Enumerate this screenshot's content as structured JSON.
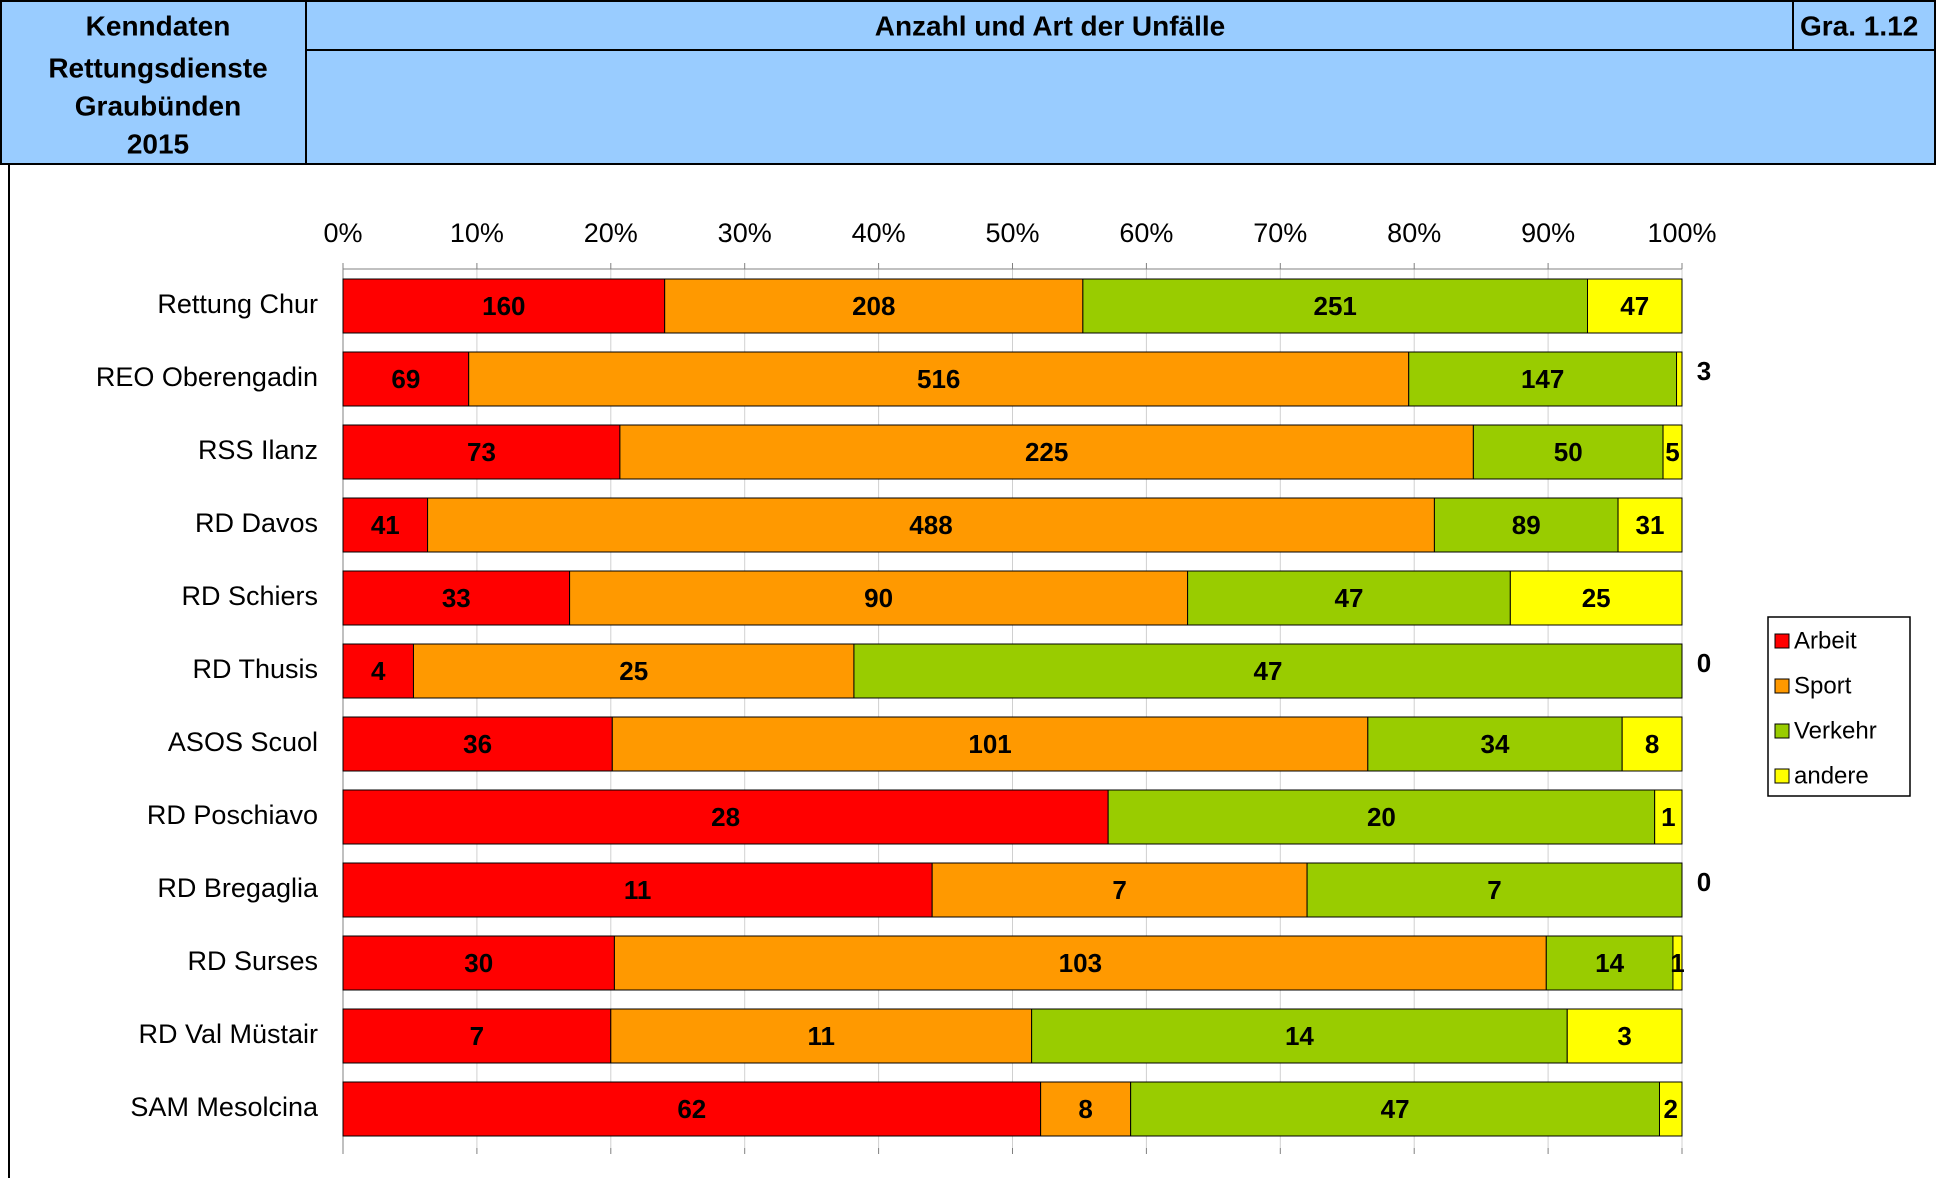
{
  "header": {
    "lines": [
      "Kenndaten",
      "Rettungsdienste",
      "Graubünden",
      "2015"
    ],
    "title": "Anzahl und Art der Unfälle",
    "code": "Gra. 1.12"
  },
  "chart_data": {
    "type": "bar",
    "orientation": "horizontal",
    "stacking": "percent",
    "categories": [
      "Rettung Chur",
      "REO Oberengadin",
      "RSS Ilanz",
      "RD Davos",
      "RD Schiers",
      "RD Thusis",
      "ASOS Scuol",
      "RD Poschiavo",
      "RD Bregaglia",
      "RD Surses",
      "RD Val Müstair",
      "SAM Mesolcina"
    ],
    "series": [
      {
        "name": "Arbeit",
        "color": "#ff0000",
        "values": [
          160,
          69,
          73,
          41,
          33,
          4,
          36,
          28,
          11,
          30,
          7,
          62
        ]
      },
      {
        "name": "Sport",
        "color": "#ff9900",
        "values": [
          208,
          516,
          225,
          488,
          90,
          25,
          101,
          0,
          7,
          103,
          11,
          8
        ]
      },
      {
        "name": "Verkehr",
        "color": "#99cc00",
        "values": [
          251,
          147,
          50,
          89,
          47,
          47,
          34,
          20,
          7,
          14,
          14,
          47
        ]
      },
      {
        "name": "andere",
        "color": "#ffff00",
        "values": [
          47,
          3,
          5,
          31,
          25,
          0,
          8,
          1,
          0,
          1,
          3,
          2
        ]
      }
    ],
    "xlim": [
      0,
      100
    ],
    "xticks": [
      {
        "value": 0,
        "label": "0%"
      },
      {
        "value": 10,
        "label": "10%"
      },
      {
        "value": 20,
        "label": "20%"
      },
      {
        "value": 30,
        "label": "30%"
      },
      {
        "value": 40,
        "label": "40%"
      },
      {
        "value": 50,
        "label": "50%"
      },
      {
        "value": 60,
        "label": "60%"
      },
      {
        "value": 70,
        "label": "70%"
      },
      {
        "value": 80,
        "label": "80%"
      },
      {
        "value": 90,
        "label": "90%"
      },
      {
        "value": 100,
        "label": "100%"
      }
    ],
    "grid": true,
    "legend": "right"
  }
}
